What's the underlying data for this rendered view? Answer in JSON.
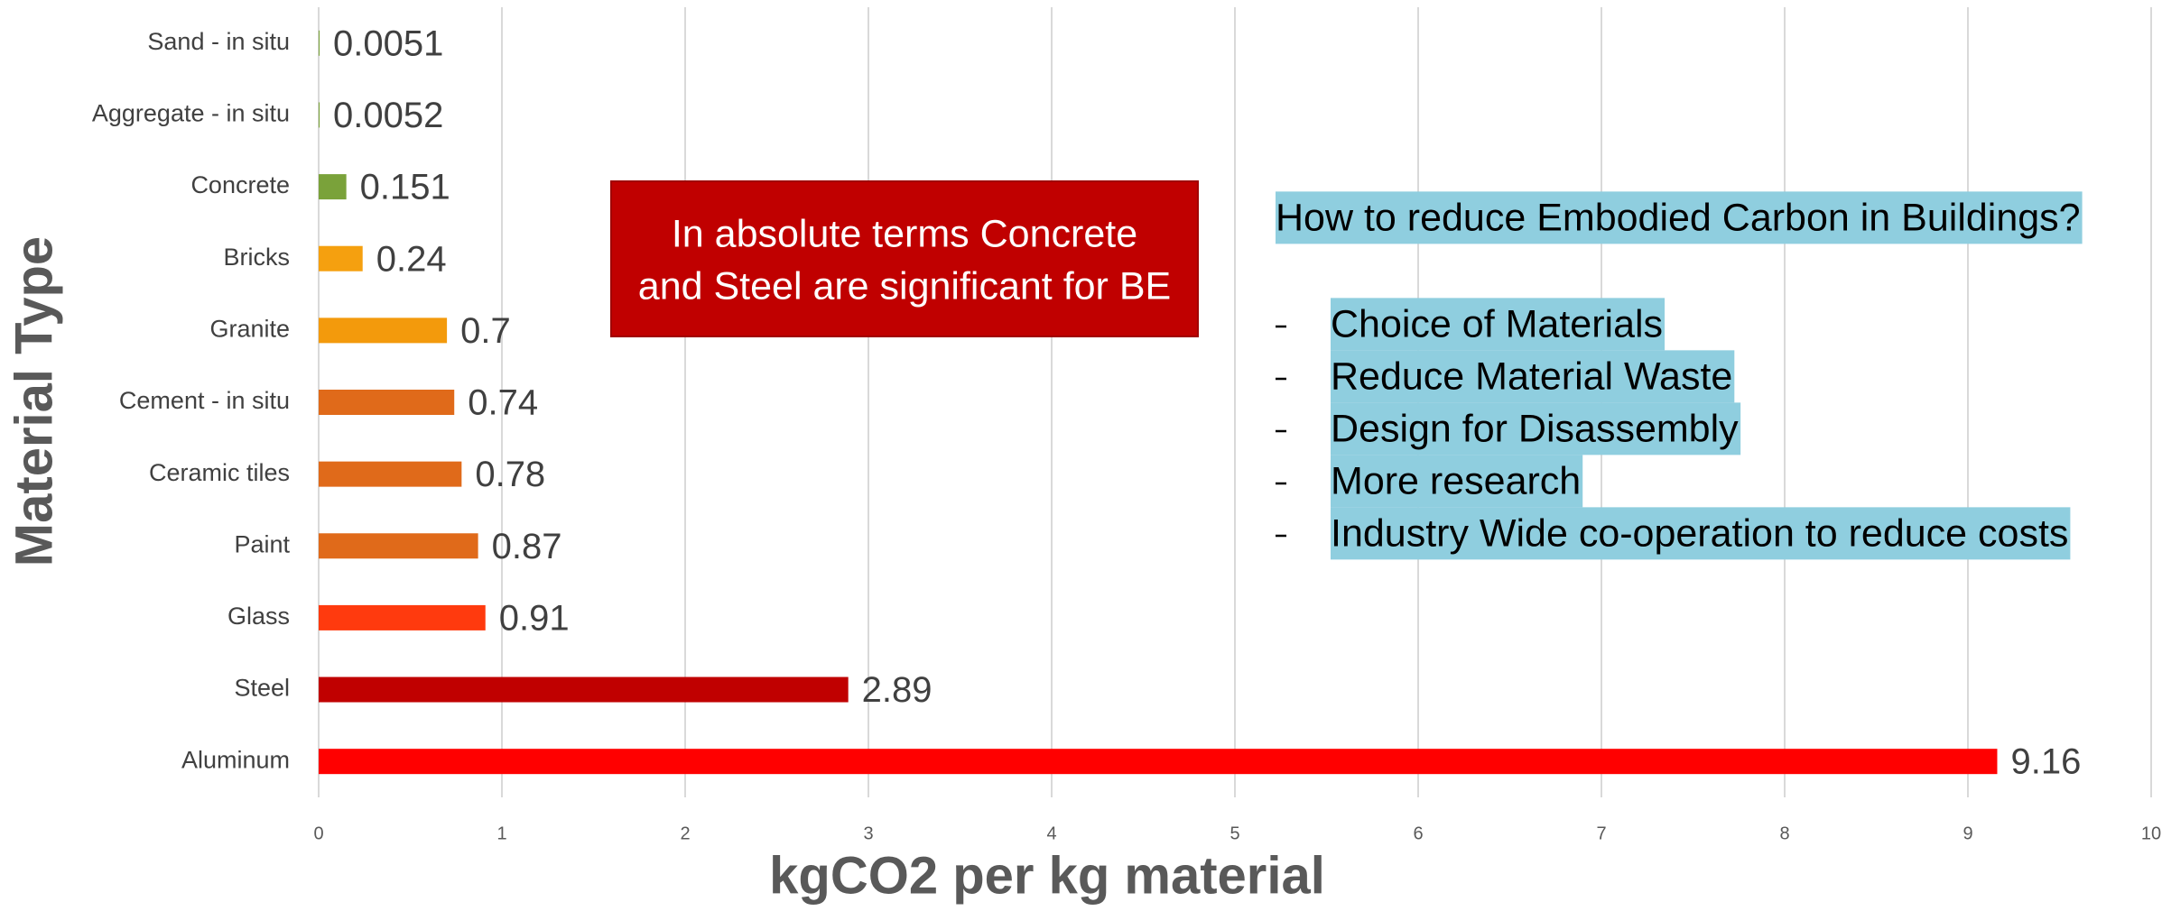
{
  "chart_data": {
    "type": "barh",
    "categories": [
      "Sand - in situ",
      "Aggregate - in situ",
      "Concrete",
      "Bricks",
      "Granite",
      "Cement - in situ",
      "Ceramic tiles",
      "Paint",
      "Glass",
      "Steel",
      "Aluminum"
    ],
    "values": [
      0.0051,
      0.0052,
      0.151,
      0.24,
      0.7,
      0.74,
      0.78,
      0.87,
      0.91,
      2.89,
      9.16
    ],
    "colors": [
      "#7aa23a",
      "#7aa23a",
      "#7aa23a",
      "#f5a00f",
      "#f39a0c",
      "#e06a1a",
      "#e06a1a",
      "#e06a1a",
      "#ff3a0e",
      "#c00000",
      "#ff0000"
    ],
    "xlim": [
      0,
      10
    ],
    "xticks": [
      0,
      1,
      2,
      3,
      4,
      5,
      6,
      7,
      8,
      9,
      10
    ],
    "grid": true,
    "x_label": "kgCO2 per kg material",
    "y_label": "Material Type",
    "annotations": {
      "box_text": [
        "In absolute terms Concrete",
        "and Steel are significant for BE"
      ],
      "list_title": "How to reduce Embodied Carbon in Buildings?",
      "list_items": [
        "Choice of Materials",
        "Reduce Material Waste",
        "Design for Disassembly",
        "More research",
        "Industry Wide co-operation to reduce costs"
      ]
    }
  }
}
